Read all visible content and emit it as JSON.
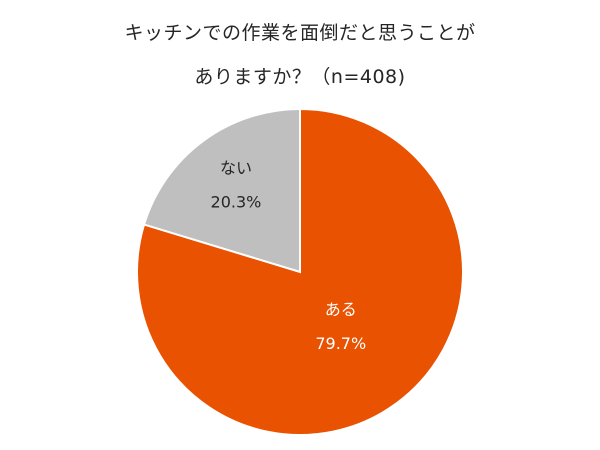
{
  "chart_data": {
    "type": "pie",
    "title": [
      "キッチンでの作業を面倒だと思うことが",
      "ありますか？（n=408)"
    ],
    "slices": [
      {
        "label": "ない",
        "value": 20.3,
        "value_label": "20.3%",
        "color": "#BFBFBF",
        "text_color": "#262626"
      },
      {
        "label": "ある",
        "value": 79.7,
        "value_label": "79.7%",
        "color": "#E85200",
        "text_color": "#FFFFFF"
      }
    ],
    "start": "12 o'clock, clockwise from the 'ない' slice end",
    "legend": "none"
  }
}
